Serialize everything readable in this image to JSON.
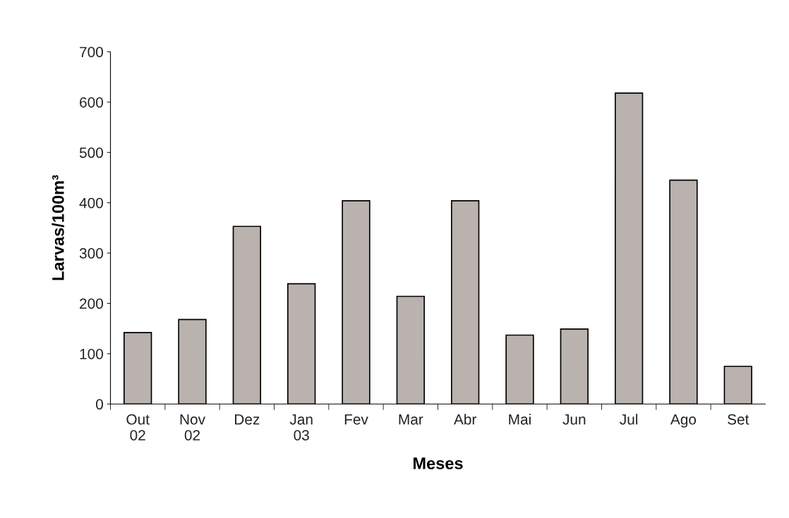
{
  "chart_data": {
    "type": "bar",
    "xlabel": "Meses",
    "ylabel": "Larvas/100m³",
    "categories": [
      "Out\n02",
      "Nov\n02",
      "Dez",
      "Jan\n03",
      "Fev",
      "Mar",
      "Abr",
      "Mai",
      "Jun",
      "Jul",
      "Ago",
      "Set"
    ],
    "values": [
      142,
      168,
      353,
      239,
      404,
      214,
      404,
      137,
      149,
      618,
      445,
      75
    ],
    "color": "#bab2ae",
    "ylim": [
      0,
      700
    ],
    "yticks": [
      0,
      100,
      200,
      300,
      400,
      500,
      600,
      700
    ],
    "grid": false,
    "legend": false
  }
}
